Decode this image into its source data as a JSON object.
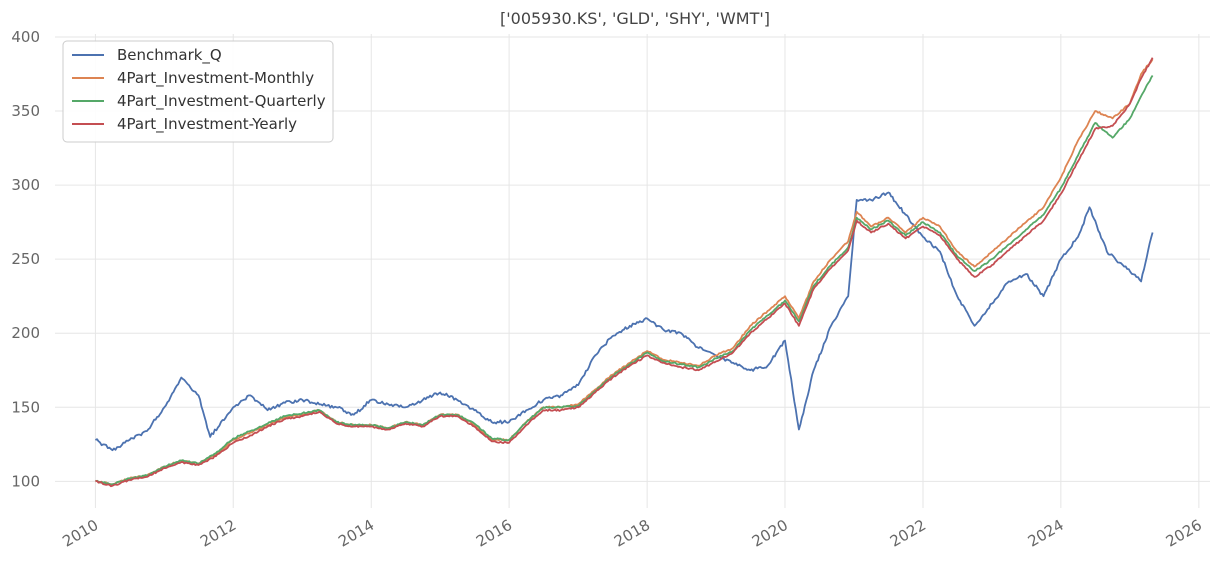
{
  "chart_data": {
    "type": "line",
    "title": "['005930.KS', 'GLD', 'SHY', 'WMT']",
    "xlabel": "",
    "ylabel": "",
    "x_axis_type": "date",
    "xlim": [
      "2009-06-01",
      "2026-03-01"
    ],
    "ylim": [
      82,
      402
    ],
    "x_ticks": [
      "2010",
      "2012",
      "2014",
      "2016",
      "2018",
      "2020",
      "2022",
      "2024",
      "2026"
    ],
    "y_ticks": [
      100,
      150,
      200,
      250,
      300,
      350,
      400
    ],
    "grid": true,
    "legend_position": "top-left",
    "series": [
      {
        "name": "Benchmark_Q",
        "color": "#4c72b0",
        "points": [
          [
            "2010-01-01",
            128
          ],
          [
            "2010-04-01",
            121
          ],
          [
            "2010-07-01",
            128
          ],
          [
            "2010-10-01",
            134
          ],
          [
            "2011-01-01",
            150
          ],
          [
            "2011-04-01",
            170
          ],
          [
            "2011-07-01",
            158
          ],
          [
            "2011-09-01",
            130
          ],
          [
            "2012-01-01",
            150
          ],
          [
            "2012-04-01",
            158
          ],
          [
            "2012-07-01",
            148
          ],
          [
            "2012-10-01",
            153
          ],
          [
            "2013-01-01",
            155
          ],
          [
            "2013-04-01",
            152
          ],
          [
            "2013-07-01",
            150
          ],
          [
            "2013-10-01",
            145
          ],
          [
            "2014-01-01",
            155
          ],
          [
            "2014-04-01",
            152
          ],
          [
            "2014-07-01",
            150
          ],
          [
            "2014-10-01",
            155
          ],
          [
            "2015-01-01",
            160
          ],
          [
            "2015-04-01",
            155
          ],
          [
            "2015-07-01",
            148
          ],
          [
            "2015-10-01",
            140
          ],
          [
            "2016-01-01",
            140
          ],
          [
            "2016-04-01",
            148
          ],
          [
            "2016-07-01",
            155
          ],
          [
            "2016-10-01",
            158
          ],
          [
            "2017-01-01",
            165
          ],
          [
            "2017-04-01",
            185
          ],
          [
            "2017-07-01",
            198
          ],
          [
            "2017-10-01",
            205
          ],
          [
            "2018-01-01",
            210
          ],
          [
            "2018-04-01",
            202
          ],
          [
            "2018-07-01",
            200
          ],
          [
            "2018-10-01",
            190
          ],
          [
            "2019-01-01",
            185
          ],
          [
            "2019-04-01",
            180
          ],
          [
            "2019-07-01",
            175
          ],
          [
            "2019-10-01",
            178
          ],
          [
            "2020-01-01",
            195
          ],
          [
            "2020-03-15",
            135
          ],
          [
            "2020-06-01",
            175
          ],
          [
            "2020-09-01",
            205
          ],
          [
            "2020-12-01",
            225
          ],
          [
            "2021-01-15",
            290
          ],
          [
            "2021-04-01",
            290
          ],
          [
            "2021-07-01",
            295
          ],
          [
            "2021-10-01",
            280
          ],
          [
            "2022-01-01",
            265
          ],
          [
            "2022-04-01",
            255
          ],
          [
            "2022-07-01",
            225
          ],
          [
            "2022-10-01",
            205
          ],
          [
            "2023-01-01",
            220
          ],
          [
            "2023-04-01",
            235
          ],
          [
            "2023-07-01",
            240
          ],
          [
            "2023-10-01",
            225
          ],
          [
            "2024-01-01",
            250
          ],
          [
            "2024-04-01",
            265
          ],
          [
            "2024-06-01",
            285
          ],
          [
            "2024-09-01",
            255
          ],
          [
            "2024-12-01",
            245
          ],
          [
            "2025-03-01",
            235
          ],
          [
            "2025-05-01",
            268
          ]
        ]
      },
      {
        "name": "4Part_Investment-Monthly",
        "color": "#dd8452",
        "points": [
          [
            "2010-01-01",
            100
          ],
          [
            "2010-04-01",
            98
          ],
          [
            "2010-07-01",
            102
          ],
          [
            "2010-10-01",
            104
          ],
          [
            "2011-01-01",
            110
          ],
          [
            "2011-04-01",
            114
          ],
          [
            "2011-07-01",
            112
          ],
          [
            "2011-10-01",
            118
          ],
          [
            "2012-01-01",
            128
          ],
          [
            "2012-04-01",
            133
          ],
          [
            "2012-07-01",
            138
          ],
          [
            "2012-10-01",
            143
          ],
          [
            "2013-01-01",
            145
          ],
          [
            "2013-04-01",
            148
          ],
          [
            "2013-07-01",
            140
          ],
          [
            "2013-10-01",
            138
          ],
          [
            "2014-01-01",
            138
          ],
          [
            "2014-04-01",
            136
          ],
          [
            "2014-07-01",
            140
          ],
          [
            "2014-10-01",
            138
          ],
          [
            "2015-01-01",
            145
          ],
          [
            "2015-04-01",
            145
          ],
          [
            "2015-07-01",
            138
          ],
          [
            "2015-10-01",
            128
          ],
          [
            "2016-01-01",
            128
          ],
          [
            "2016-04-01",
            140
          ],
          [
            "2016-07-01",
            150
          ],
          [
            "2016-10-01",
            150
          ],
          [
            "2017-01-01",
            152
          ],
          [
            "2017-04-01",
            162
          ],
          [
            "2017-07-01",
            172
          ],
          [
            "2017-10-01",
            180
          ],
          [
            "2018-01-01",
            188
          ],
          [
            "2018-04-01",
            182
          ],
          [
            "2018-07-01",
            180
          ],
          [
            "2018-10-01",
            178
          ],
          [
            "2019-01-01",
            185
          ],
          [
            "2019-04-01",
            190
          ],
          [
            "2019-07-01",
            205
          ],
          [
            "2019-10-01",
            215
          ],
          [
            "2020-01-01",
            225
          ],
          [
            "2020-03-15",
            210
          ],
          [
            "2020-06-01",
            235
          ],
          [
            "2020-09-01",
            250
          ],
          [
            "2020-12-01",
            262
          ],
          [
            "2021-01-15",
            282
          ],
          [
            "2021-04-01",
            272
          ],
          [
            "2021-07-01",
            278
          ],
          [
            "2021-10-01",
            268
          ],
          [
            "2022-01-01",
            278
          ],
          [
            "2022-04-01",
            272
          ],
          [
            "2022-07-01",
            255
          ],
          [
            "2022-10-01",
            245
          ],
          [
            "2023-01-01",
            255
          ],
          [
            "2023-04-01",
            265
          ],
          [
            "2023-07-01",
            275
          ],
          [
            "2023-10-01",
            285
          ],
          [
            "2024-01-01",
            305
          ],
          [
            "2024-04-01",
            330
          ],
          [
            "2024-07-01",
            350
          ],
          [
            "2024-10-01",
            345
          ],
          [
            "2025-01-01",
            355
          ],
          [
            "2025-03-01",
            375
          ],
          [
            "2025-05-01",
            385
          ]
        ]
      },
      {
        "name": "4Part_Investment-Quarterly",
        "color": "#55a868",
        "points": [
          [
            "2010-01-01",
            100
          ],
          [
            "2010-04-01",
            98
          ],
          [
            "2010-07-01",
            102
          ],
          [
            "2010-10-01",
            104
          ],
          [
            "2011-01-01",
            110
          ],
          [
            "2011-04-01",
            114
          ],
          [
            "2011-07-01",
            112
          ],
          [
            "2011-10-01",
            119
          ],
          [
            "2012-01-01",
            129
          ],
          [
            "2012-04-01",
            134
          ],
          [
            "2012-07-01",
            139
          ],
          [
            "2012-10-01",
            144
          ],
          [
            "2013-01-01",
            146
          ],
          [
            "2013-04-01",
            148
          ],
          [
            "2013-07-01",
            140
          ],
          [
            "2013-10-01",
            138
          ],
          [
            "2014-01-01",
            138
          ],
          [
            "2014-04-01",
            136
          ],
          [
            "2014-07-01",
            140
          ],
          [
            "2014-10-01",
            138
          ],
          [
            "2015-01-01",
            145
          ],
          [
            "2015-04-01",
            145
          ],
          [
            "2015-07-01",
            139
          ],
          [
            "2015-10-01",
            129
          ],
          [
            "2016-01-01",
            128
          ],
          [
            "2016-04-01",
            140
          ],
          [
            "2016-07-01",
            150
          ],
          [
            "2016-10-01",
            150
          ],
          [
            "2017-01-01",
            151
          ],
          [
            "2017-04-01",
            161
          ],
          [
            "2017-07-01",
            171
          ],
          [
            "2017-10-01",
            179
          ],
          [
            "2018-01-01",
            187
          ],
          [
            "2018-04-01",
            181
          ],
          [
            "2018-07-01",
            179
          ],
          [
            "2018-10-01",
            177
          ],
          [
            "2019-01-01",
            183
          ],
          [
            "2019-04-01",
            188
          ],
          [
            "2019-07-01",
            202
          ],
          [
            "2019-10-01",
            212
          ],
          [
            "2020-01-01",
            222
          ],
          [
            "2020-03-15",
            208
          ],
          [
            "2020-06-01",
            232
          ],
          [
            "2020-09-01",
            246
          ],
          [
            "2020-12-01",
            258
          ],
          [
            "2021-01-15",
            278
          ],
          [
            "2021-04-01",
            270
          ],
          [
            "2021-07-01",
            276
          ],
          [
            "2021-10-01",
            266
          ],
          [
            "2022-01-01",
            275
          ],
          [
            "2022-04-01",
            268
          ],
          [
            "2022-07-01",
            252
          ],
          [
            "2022-10-01",
            242
          ],
          [
            "2023-01-01",
            250
          ],
          [
            "2023-04-01",
            260
          ],
          [
            "2023-07-01",
            270
          ],
          [
            "2023-10-01",
            280
          ],
          [
            "2024-01-01",
            298
          ],
          [
            "2024-04-01",
            320
          ],
          [
            "2024-07-01",
            342
          ],
          [
            "2024-10-01",
            332
          ],
          [
            "2025-01-01",
            345
          ],
          [
            "2025-03-01",
            360
          ],
          [
            "2025-05-01",
            374
          ]
        ]
      },
      {
        "name": "4Part_Investment-Yearly",
        "color": "#c44e52",
        "points": [
          [
            "2010-01-01",
            100
          ],
          [
            "2010-04-01",
            97
          ],
          [
            "2010-07-01",
            101
          ],
          [
            "2010-10-01",
            103
          ],
          [
            "2011-01-01",
            109
          ],
          [
            "2011-04-01",
            113
          ],
          [
            "2011-07-01",
            111
          ],
          [
            "2011-10-01",
            117
          ],
          [
            "2012-01-01",
            126
          ],
          [
            "2012-04-01",
            131
          ],
          [
            "2012-07-01",
            137
          ],
          [
            "2012-10-01",
            142
          ],
          [
            "2013-01-01",
            144
          ],
          [
            "2013-04-01",
            147
          ],
          [
            "2013-07-01",
            139
          ],
          [
            "2013-10-01",
            137
          ],
          [
            "2014-01-01",
            137
          ],
          [
            "2014-04-01",
            135
          ],
          [
            "2014-07-01",
            139
          ],
          [
            "2014-10-01",
            137
          ],
          [
            "2015-01-01",
            144
          ],
          [
            "2015-04-01",
            144
          ],
          [
            "2015-07-01",
            137
          ],
          [
            "2015-10-01",
            127
          ],
          [
            "2016-01-01",
            126
          ],
          [
            "2016-04-01",
            138
          ],
          [
            "2016-07-01",
            148
          ],
          [
            "2016-10-01",
            148
          ],
          [
            "2017-01-01",
            150
          ],
          [
            "2017-04-01",
            160
          ],
          [
            "2017-07-01",
            170
          ],
          [
            "2017-10-01",
            178
          ],
          [
            "2018-01-01",
            185
          ],
          [
            "2018-04-01",
            180
          ],
          [
            "2018-07-01",
            177
          ],
          [
            "2018-10-01",
            175
          ],
          [
            "2019-01-01",
            181
          ],
          [
            "2019-04-01",
            187
          ],
          [
            "2019-07-01",
            200
          ],
          [
            "2019-10-01",
            210
          ],
          [
            "2020-01-01",
            220
          ],
          [
            "2020-03-15",
            205
          ],
          [
            "2020-06-01",
            230
          ],
          [
            "2020-09-01",
            244
          ],
          [
            "2020-12-01",
            256
          ],
          [
            "2021-01-15",
            276
          ],
          [
            "2021-04-01",
            268
          ],
          [
            "2021-07-01",
            274
          ],
          [
            "2021-10-01",
            264
          ],
          [
            "2022-01-01",
            272
          ],
          [
            "2022-04-01",
            266
          ],
          [
            "2022-07-01",
            250
          ],
          [
            "2022-10-01",
            238
          ],
          [
            "2023-01-01",
            246
          ],
          [
            "2023-04-01",
            256
          ],
          [
            "2023-07-01",
            266
          ],
          [
            "2023-10-01",
            276
          ],
          [
            "2024-01-01",
            294
          ],
          [
            "2024-04-01",
            316
          ],
          [
            "2024-07-01",
            338
          ],
          [
            "2024-10-01",
            340
          ],
          [
            "2025-01-01",
            355
          ],
          [
            "2025-03-01",
            372
          ],
          [
            "2025-05-01",
            386
          ]
        ]
      }
    ]
  }
}
